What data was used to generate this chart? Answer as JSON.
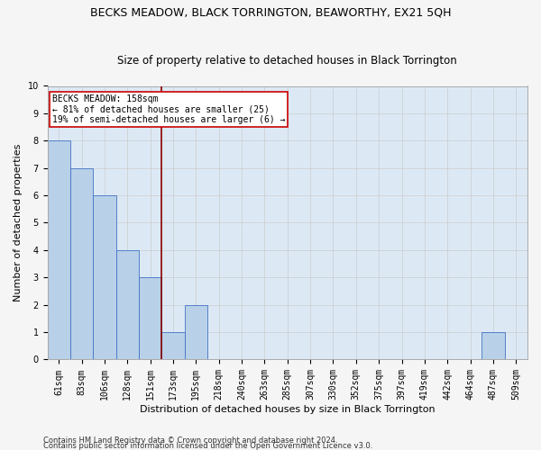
{
  "title": "BECKS MEADOW, BLACK TORRINGTON, BEAWORTHY, EX21 5QH",
  "subtitle": "Size of property relative to detached houses in Black Torrington",
  "xlabel": "Distribution of detached houses by size in Black Torrington",
  "ylabel": "Number of detached properties",
  "footnote1": "Contains HM Land Registry data © Crown copyright and database right 2024.",
  "footnote2": "Contains public sector information licensed under the Open Government Licence v3.0.",
  "categories": [
    "61sqm",
    "83sqm",
    "106sqm",
    "128sqm",
    "151sqm",
    "173sqm",
    "195sqm",
    "218sqm",
    "240sqm",
    "263sqm",
    "285sqm",
    "307sqm",
    "330sqm",
    "352sqm",
    "375sqm",
    "397sqm",
    "419sqm",
    "442sqm",
    "464sqm",
    "487sqm",
    "509sqm"
  ],
  "values": [
    8,
    7,
    6,
    4,
    3,
    1,
    2,
    0,
    0,
    0,
    0,
    0,
    0,
    0,
    0,
    0,
    0,
    0,
    0,
    1,
    0
  ],
  "bar_color": "#b8d0e8",
  "bar_edge_color": "#4472c4",
  "vline_x": 4.5,
  "vline_color": "#8b0000",
  "annotation_text": "BECKS MEADOW: 158sqm\n← 81% of detached houses are smaller (25)\n19% of semi-detached houses are larger (6) →",
  "annotation_box_color": "#ffffff",
  "annotation_box_edge": "#cc0000",
  "ylim": [
    0,
    10
  ],
  "yticks": [
    0,
    1,
    2,
    3,
    4,
    5,
    6,
    7,
    8,
    9,
    10
  ],
  "grid_color": "#cccccc",
  "bg_color": "#dce9f5",
  "fig_bg_color": "#f5f5f5",
  "title_fontsize": 9,
  "subtitle_fontsize": 8.5,
  "axis_label_fontsize": 8,
  "tick_fontsize": 7,
  "footnote_fontsize": 6
}
